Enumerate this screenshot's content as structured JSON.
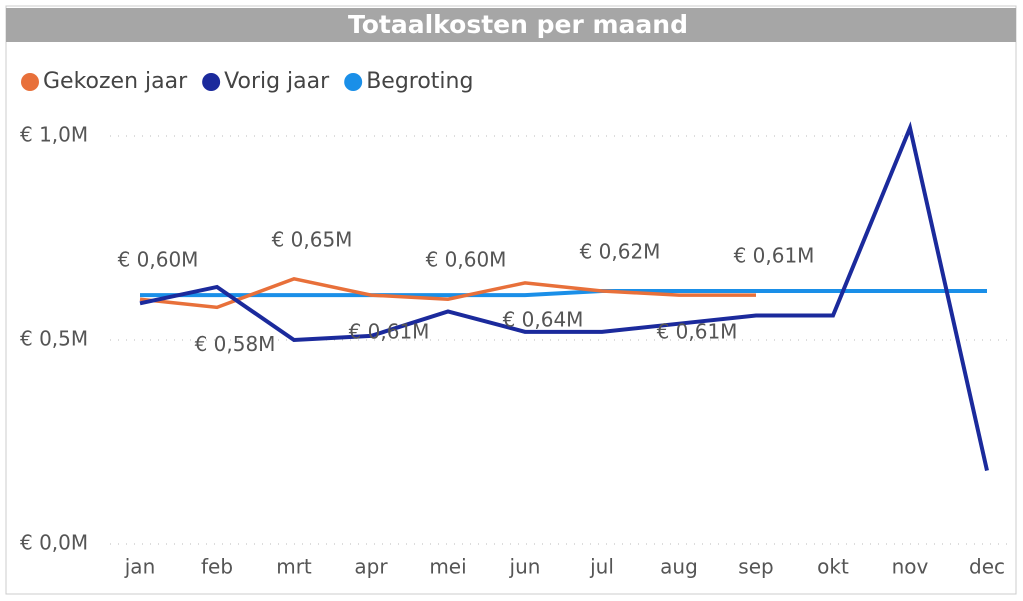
{
  "chart_data": {
    "type": "line",
    "title": "Totaalkosten per maand",
    "categories": [
      "jan",
      "feb",
      "mrt",
      "apr",
      "mei",
      "jun",
      "jul",
      "aug",
      "sep",
      "okt",
      "nov",
      "dec"
    ],
    "series": [
      {
        "name": "Gekozen jaar",
        "color": "#e8703a",
        "values": [
          600000,
          580000,
          650000,
          610000,
          600000,
          640000,
          620000,
          610000,
          610000,
          null,
          null,
          null
        ],
        "value_labels": [
          "€ 0,60M",
          "€ 0,58M",
          "€ 0,65M",
          "€ 0,61M",
          "€ 0,60M",
          "€ 0,64M",
          "€ 0,62M",
          "€ 0,61M",
          "€ 0,61M",
          null,
          null,
          null
        ]
      },
      {
        "name": "Vorig jaar",
        "color": "#1b2a9c",
        "values": [
          590000,
          630000,
          500000,
          510000,
          570000,
          520000,
          520000,
          540000,
          560000,
          560000,
          1020000,
          180000
        ]
      },
      {
        "name": "Begroting",
        "color": "#1a8fe8",
        "values": [
          610000,
          610000,
          610000,
          610000,
          610000,
          610000,
          620000,
          620000,
          620000,
          620000,
          620000,
          620000
        ]
      }
    ],
    "ylim": [
      0,
      1000000
    ],
    "yticks": [
      {
        "value": 0,
        "label": "€ 0,0M"
      },
      {
        "value": 500000,
        "label": "€ 0,5M"
      },
      {
        "value": 1000000,
        "label": "€ 1,0M"
      }
    ],
    "grid": true,
    "legend": "top-left"
  }
}
